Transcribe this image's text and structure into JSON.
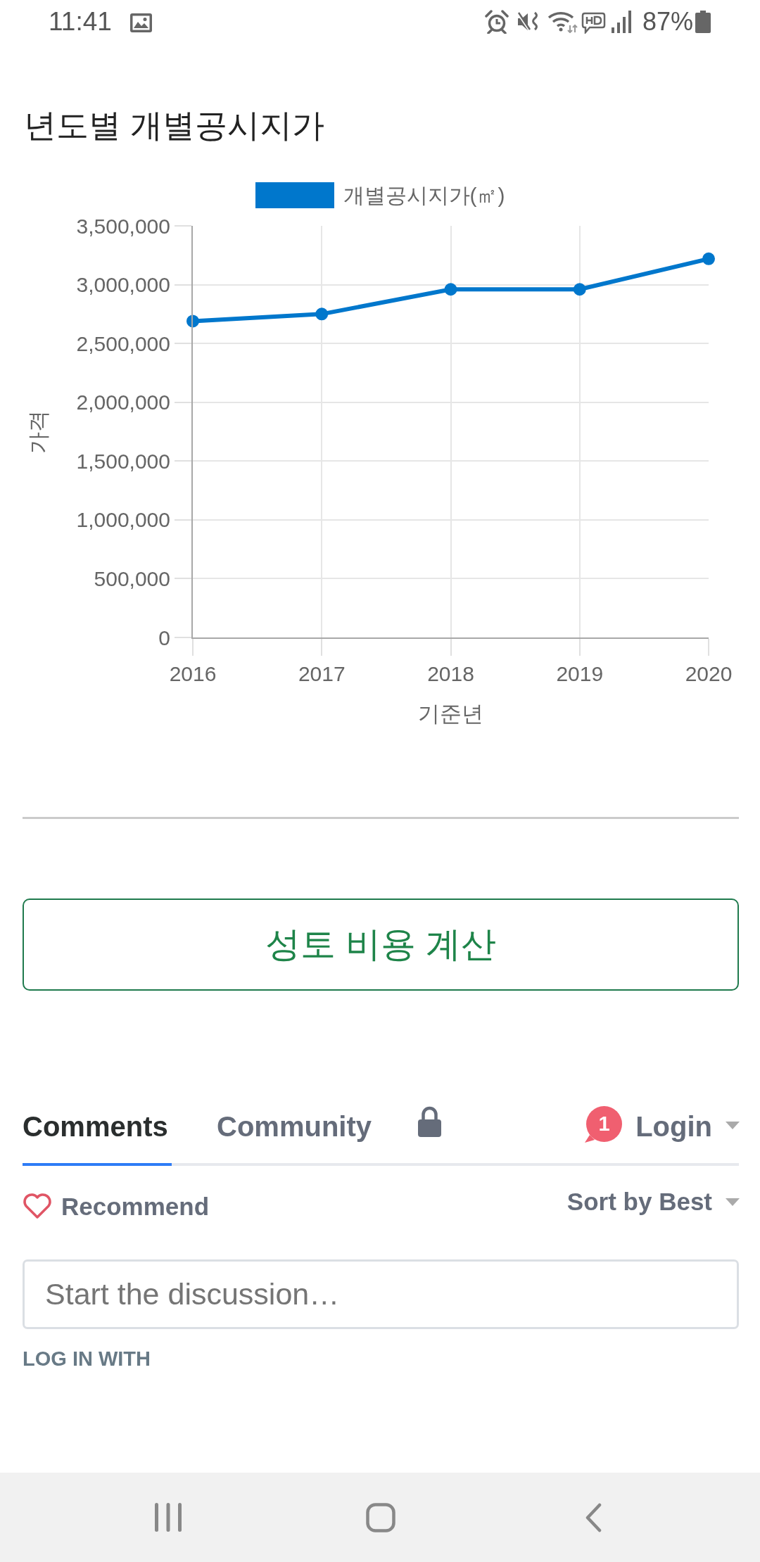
{
  "chart_data": {
    "type": "line",
    "title": "년도별 개별공시지가",
    "xlabel": "기준년",
    "ylabel": "가격",
    "categories": [
      "2016",
      "2017",
      "2018",
      "2019",
      "2020"
    ],
    "series": [
      {
        "name": "개별공시지가(㎡)",
        "color": "#0077cc",
        "values": [
          2690000,
          2750000,
          2960000,
          2960000,
          3220000
        ]
      }
    ],
    "ylim": [
      0,
      3500000
    ],
    "yticks": [
      0,
      {
        "value": 500000,
        "label": "500,000"
      },
      {
        "value": 1000000,
        "label": "1,000,000"
      },
      {
        "value": 1500000,
        "label": "1,500,000"
      },
      {
        "value": 2000000,
        "label": "2,000,000"
      },
      {
        "value": 2500000,
        "label": "2,500,000"
      },
      {
        "value": 3000000,
        "label": "3,000,000"
      },
      {
        "value": 3500000,
        "label": "3,500,000"
      }
    ],
    "grid": true,
    "legend": "top",
    "marker": "circle",
    "line_style": "solid",
    "annotations": [
      "11:41",
      "87%",
      "성토 비용 계산",
      "Comments",
      "Community",
      "1",
      "Login",
      "Recommend",
      "Sort by Best",
      "Start the discussion…",
      "LOG IN WITH"
    ]
  }
}
